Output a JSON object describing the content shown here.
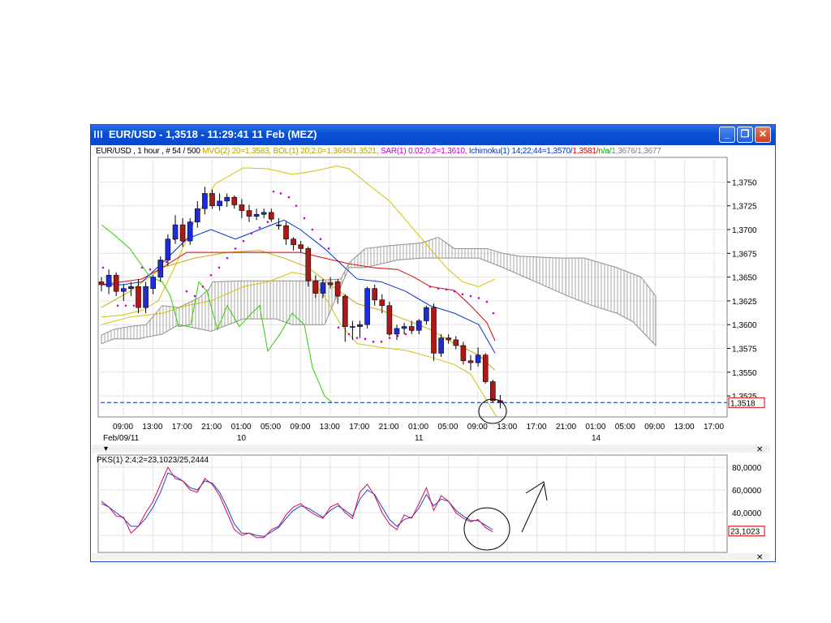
{
  "window": {
    "title": "EUR/USD - 1,3518 - 11:29:41  11 Feb (MEZ)",
    "buttons": [
      "_",
      "❐",
      "✕"
    ]
  },
  "info_bar": [
    {
      "text": "EUR/USD , 1 hour , # 54 / 500 ",
      "color": "#000000"
    },
    {
      "text": "MVG(2) 20=1,3583, ",
      "color": "#b8a000"
    },
    {
      "text": "BOL(1) 20;2.0=1,3645/1,3521, ",
      "color": "#b8a000"
    },
    {
      "text": "SAR(1) 0.02;0.2=1,3610, ",
      "color": "#c000c0"
    },
    {
      "text": "Ichimoku(1) 14;22;44=1,3570/",
      "color": "#0033cc"
    },
    {
      "text": "1,3581/",
      "color": "#d00000"
    },
    {
      "text": "n/a/",
      "color": "#00a000"
    },
    {
      "text": "1,3676/1,3677",
      "color": "#808080"
    }
  ],
  "price_chart": {
    "y_ticks": [
      "1,3750",
      "1,3725",
      "1,3700",
      "1,3675",
      "1,3650",
      "1,3625",
      "1,3600",
      "1,3575",
      "1,3550",
      "1,3525"
    ],
    "current_price": "1,3518",
    "x_ticks": [
      "09:00",
      "13:00",
      "17:00",
      "21:00",
      "01:00",
      "05:00",
      "09:00",
      "13:00",
      "17:00",
      "21:00",
      "01:00",
      "05:00",
      "09:00",
      "13:00",
      "17:00",
      "21:00",
      "01:00",
      "05:00",
      "09:00",
      "13:00",
      "17:00"
    ],
    "date_labels": [
      "Feb/09/11",
      "10",
      "11",
      "14"
    ]
  },
  "indicator_chart": {
    "label": "PKS(1) 2;4;2=23,1023/25,2444",
    "y_ticks": [
      "80,0000",
      "60,0000",
      "40,0000"
    ],
    "current_value": "23,1023"
  },
  "chart_data": {
    "type": "candlestick",
    "symbol": "EUR/USD",
    "interval": "1 hour",
    "candles": [
      [
        1.3645,
        1.365,
        1.3635,
        1.3642
      ],
      [
        1.364,
        1.3658,
        1.3632,
        1.3652
      ],
      [
        1.3652,
        1.3655,
        1.363,
        1.3635
      ],
      [
        1.3635,
        1.3642,
        1.3625,
        1.3638
      ],
      [
        1.3638,
        1.3645,
        1.363,
        1.364
      ],
      [
        1.364,
        1.3648,
        1.3612,
        1.3618
      ],
      [
        1.3618,
        1.3645,
        1.3612,
        1.364
      ],
      [
        1.3638,
        1.3652,
        1.3632,
        1.365
      ],
      [
        1.365,
        1.3672,
        1.3645,
        1.3668
      ],
      [
        1.3668,
        1.3695,
        1.3662,
        1.369
      ],
      [
        1.369,
        1.3715,
        1.3685,
        1.3705
      ],
      [
        1.3705,
        1.3712,
        1.3682,
        1.3688
      ],
      [
        1.3688,
        1.3712,
        1.3684,
        1.3708
      ],
      [
        1.3708,
        1.373,
        1.3702,
        1.3722
      ],
      [
        1.3722,
        1.3745,
        1.3716,
        1.3738
      ],
      [
        1.3738,
        1.3742,
        1.3722,
        1.3725
      ],
      [
        1.3725,
        1.3738,
        1.372,
        1.373
      ],
      [
        1.373,
        1.3738,
        1.3724,
        1.3734
      ],
      [
        1.3734,
        1.3736,
        1.3722,
        1.3726
      ],
      [
        1.3726,
        1.3732,
        1.3712,
        1.372
      ],
      [
        1.372,
        1.3726,
        1.3708,
        1.3714
      ],
      [
        1.3714,
        1.3722,
        1.371,
        1.3716
      ],
      [
        1.3716,
        1.3722,
        1.3712,
        1.3718
      ],
      [
        1.3718,
        1.3722,
        1.3708,
        1.3711
      ],
      [
        1.3705,
        1.3712,
        1.37,
        1.3704
      ],
      [
        1.3704,
        1.3708,
        1.3684,
        1.369
      ],
      [
        1.369,
        1.3692,
        1.3678,
        1.3684
      ],
      [
        1.3684,
        1.3688,
        1.3676,
        1.368
      ],
      [
        1.368,
        1.3682,
        1.364,
        1.3646
      ],
      [
        1.3646,
        1.3652,
        1.3628,
        1.3633
      ],
      [
        1.3633,
        1.3648,
        1.3628,
        1.3644
      ],
      [
        1.3644,
        1.365,
        1.3638,
        1.3642
      ],
      [
        1.3645,
        1.3648,
        1.3622,
        1.363
      ],
      [
        1.363,
        1.3632,
        1.3582,
        1.3598
      ],
      [
        1.3598,
        1.3604,
        1.3584,
        1.3598
      ],
      [
        1.3598,
        1.3604,
        1.3586,
        1.36
      ],
      [
        1.36,
        1.364,
        1.3596,
        1.3638
      ],
      [
        1.3638,
        1.3642,
        1.362,
        1.3626
      ],
      [
        1.3626,
        1.3632,
        1.3612,
        1.362
      ],
      [
        1.362,
        1.3624,
        1.3588,
        1.359
      ],
      [
        1.359,
        1.36,
        1.3584,
        1.3596
      ],
      [
        1.3596,
        1.3602,
        1.359,
        1.3598
      ],
      [
        1.3598,
        1.3604,
        1.359,
        1.3594
      ],
      [
        1.3594,
        1.3606,
        1.359,
        1.3604
      ],
      [
        1.3604,
        1.362,
        1.36,
        1.3618
      ],
      [
        1.3618,
        1.3622,
        1.3562,
        1.357
      ],
      [
        1.357,
        1.359,
        1.3566,
        1.3586
      ],
      [
        1.3586,
        1.359,
        1.358,
        1.3584
      ],
      [
        1.3584,
        1.3588,
        1.3574,
        1.3578
      ],
      [
        1.3578,
        1.3582,
        1.3558,
        1.3562
      ],
      [
        1.3562,
        1.3568,
        1.3552,
        1.356
      ],
      [
        1.356,
        1.3576,
        1.3556,
        1.3568
      ],
      [
        1.3568,
        1.357,
        1.3538,
        1.354
      ],
      [
        1.354,
        1.3542,
        1.3518,
        1.352
      ],
      [
        1.352,
        1.3526,
        1.3512,
        1.3518
      ]
    ],
    "annotations": [
      "circle around last candle",
      "circle around indicator",
      "hand-drawn upward arrow"
    ]
  }
}
